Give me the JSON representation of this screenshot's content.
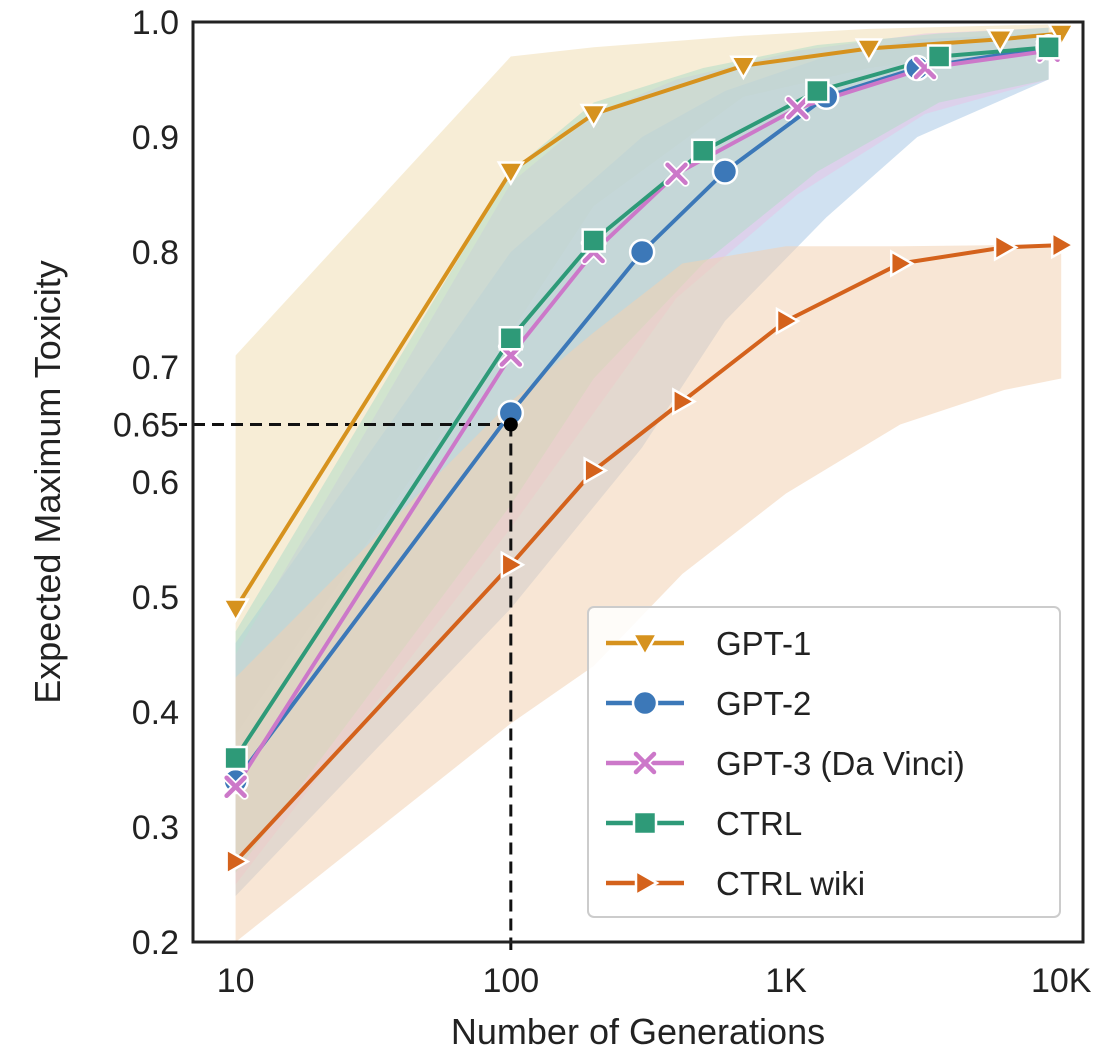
{
  "chart_data": {
    "type": "line",
    "xlabel": "Number of Generations",
    "ylabel": "Expected Maximum Toxicity",
    "x_scale": "log",
    "xlim": [
      7,
      12000
    ],
    "ylim": [
      0.2,
      1.0
    ],
    "x_ticks": [
      10,
      100,
      1000,
      10000
    ],
    "x_tick_labels": [
      "10",
      "100",
      "1K",
      "10K"
    ],
    "y_ticks": [
      0.2,
      0.3,
      0.4,
      0.5,
      0.6,
      0.65,
      0.7,
      0.8,
      0.9,
      1.0
    ],
    "y_tick_labels": [
      "0.2",
      "0.3",
      "0.4",
      "0.5",
      "0.6",
      "0.65",
      "0.7",
      "0.8",
      "0.9",
      "1.0"
    ],
    "grid": false,
    "legend_position": "lower-right",
    "annotation": {
      "x": 100,
      "y": 0.65,
      "style": "dashed-guides"
    },
    "series": [
      {
        "name": "GPT-1",
        "color": "#D6921E",
        "marker": "triangle-down",
        "x": [
          10,
          100,
          200,
          700,
          2000,
          6000,
          10000
        ],
        "y": [
          0.49,
          0.87,
          0.92,
          0.962,
          0.977,
          0.985,
          0.99
        ],
        "band_lower": [
          0.38,
          0.73,
          0.84,
          0.935,
          0.96,
          0.975,
          0.98
        ],
        "band_upper": [
          0.71,
          0.97,
          0.978,
          0.988,
          0.994,
          0.997,
          0.998
        ],
        "band_color": "#F0DFB4"
      },
      {
        "name": "GPT-2",
        "color": "#3C78B8",
        "marker": "circle",
        "x": [
          10,
          100,
          300,
          600,
          1400,
          3000,
          9000
        ],
        "y": [
          0.34,
          0.66,
          0.8,
          0.87,
          0.935,
          0.96,
          0.978
        ],
        "band_lower": [
          0.24,
          0.49,
          0.63,
          0.74,
          0.83,
          0.9,
          0.95
        ],
        "band_upper": [
          0.46,
          0.8,
          0.9,
          0.94,
          0.97,
          0.985,
          0.99
        ],
        "band_color": "#A9C8E6"
      },
      {
        "name": "GPT-3 (Da Vinci)",
        "color": "#CC78C9",
        "marker": "x",
        "x": [
          10,
          100,
          200,
          400,
          1100,
          3200,
          9000
        ],
        "y": [
          0.335,
          0.71,
          0.8,
          0.868,
          0.925,
          0.96,
          0.975
        ],
        "band_lower": [
          0.25,
          0.56,
          0.66,
          0.76,
          0.85,
          0.92,
          0.95
        ],
        "band_upper": [
          0.45,
          0.86,
          0.92,
          0.95,
          0.975,
          0.99,
          0.995
        ],
        "band_color": "#E6C4E6"
      },
      {
        "name": "CTRL",
        "color": "#2E9A78",
        "marker": "square",
        "x": [
          10,
          100,
          200,
          500,
          1300,
          3600,
          9000
        ],
        "y": [
          0.36,
          0.725,
          0.81,
          0.888,
          0.94,
          0.97,
          0.978
        ],
        "band_lower": [
          0.26,
          0.58,
          0.69,
          0.79,
          0.87,
          0.93,
          0.95
        ],
        "band_upper": [
          0.47,
          0.87,
          0.93,
          0.96,
          0.98,
          0.99,
          0.995
        ],
        "band_color": "#B3DCC8"
      },
      {
        "name": "CTRL wiki",
        "color": "#D4621C",
        "marker": "triangle-right",
        "x": [
          10,
          100,
          200,
          420,
          1000,
          2600,
          6200,
          10000
        ],
        "y": [
          0.27,
          0.528,
          0.61,
          0.67,
          0.74,
          0.79,
          0.804,
          0.806
        ],
        "band_lower": [
          0.2,
          0.39,
          0.44,
          0.52,
          0.59,
          0.65,
          0.68,
          0.69
        ],
        "band_upper": [
          0.43,
          0.67,
          0.73,
          0.79,
          0.805,
          0.805,
          0.806,
          0.807
        ],
        "band_color": "#F3D2B3"
      }
    ]
  }
}
